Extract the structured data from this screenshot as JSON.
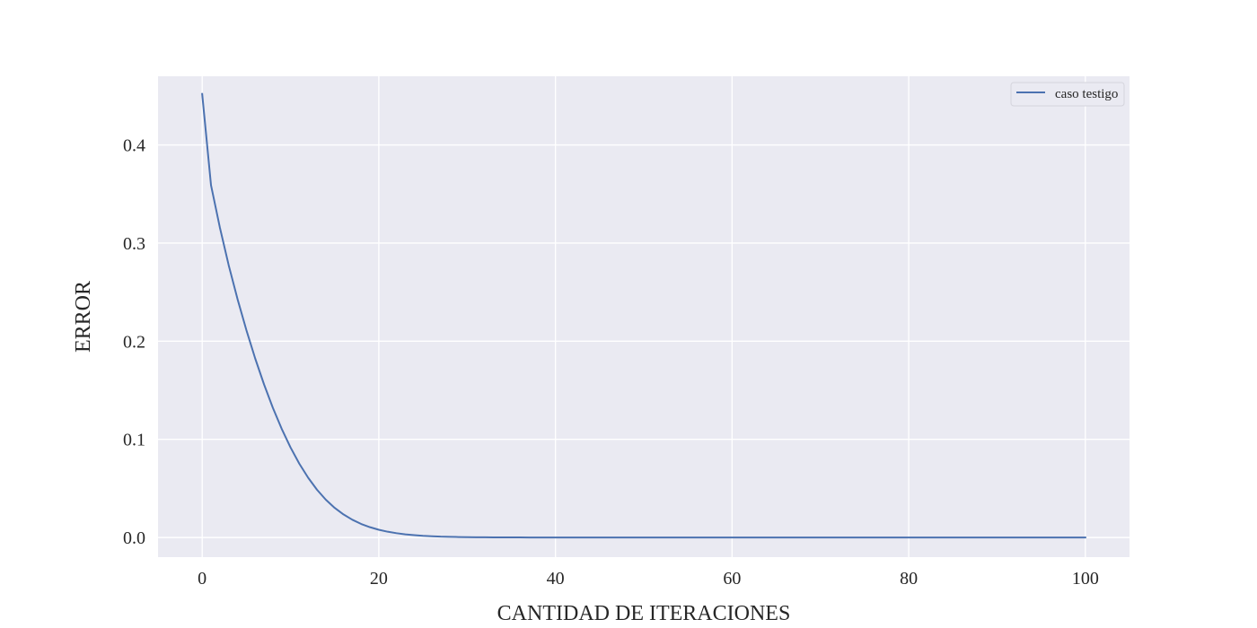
{
  "chart_data": {
    "type": "line",
    "title": "",
    "xlabel": "CANTIDAD DE ITERACIONES",
    "ylabel": "ERROR",
    "xlim": [
      -5,
      105
    ],
    "ylim": [
      -0.02,
      0.47
    ],
    "xticks": [
      0,
      20,
      40,
      60,
      80,
      100
    ],
    "yticks": [
      0.0,
      0.1,
      0.2,
      0.3,
      0.4
    ],
    "xtick_labels": [
      "0",
      "20",
      "40",
      "60",
      "80",
      "100"
    ],
    "ytick_labels": [
      "0.0",
      "0.1",
      "0.2",
      "0.3",
      "0.4"
    ],
    "grid": true,
    "legend_position": "top-right",
    "colors": {
      "plot_background": "#eaeaf2",
      "grid": "#ffffff",
      "series": "#4c72b0"
    },
    "series": [
      {
        "name": "caso testigo",
        "x": [
          0,
          1,
          2,
          3,
          4,
          5,
          6,
          7,
          8,
          9,
          10,
          11,
          12,
          13,
          14,
          15,
          16,
          17,
          18,
          19,
          20,
          21,
          22,
          23,
          24,
          25,
          26,
          27,
          28,
          29,
          30,
          31,
          32,
          33,
          34,
          35,
          36,
          37,
          38,
          39,
          40,
          41,
          42,
          43,
          44,
          45,
          46,
          47,
          48,
          49,
          50,
          51,
          52,
          53,
          54,
          55,
          56,
          57,
          58,
          59,
          60,
          61,
          62,
          63,
          64,
          65,
          66,
          67,
          68,
          69,
          70,
          71,
          72,
          73,
          74,
          75,
          76,
          77,
          78,
          79,
          80,
          81,
          82,
          83,
          84,
          85,
          86,
          87,
          88,
          89,
          90,
          91,
          92,
          93,
          94,
          95,
          96,
          97,
          98,
          99,
          100
        ],
        "y": [
          0.452,
          0.359,
          0.316,
          0.2775,
          0.243,
          0.2115,
          0.1825,
          0.1561,
          0.1322,
          0.1108,
          0.0918,
          0.0752,
          0.0609,
          0.0487,
          0.0385,
          0.0302,
          0.0235,
          0.0181,
          0.0138,
          0.0105,
          0.0079,
          0.0059,
          0.0044,
          0.0032,
          0.0024,
          0.0017,
          0.0013,
          0.0009,
          0.0007,
          0.0005,
          0.0003,
          0.0002,
          0.0002,
          0.0001,
          0.0001,
          0.0001,
          0.0001,
          0,
          0,
          0,
          0,
          0,
          0,
          0,
          0,
          0,
          0,
          0,
          0,
          0,
          0,
          0,
          0,
          0,
          0,
          0,
          0,
          0,
          0,
          0,
          0,
          0,
          0,
          0,
          0,
          0,
          0,
          0,
          0,
          0,
          0,
          0,
          0,
          0,
          0,
          0,
          0,
          0,
          0,
          0,
          0,
          0,
          0,
          0,
          0,
          0,
          0,
          0,
          0,
          0,
          0,
          0,
          0,
          0,
          0,
          0,
          0,
          0,
          0,
          0,
          0
        ]
      }
    ]
  }
}
